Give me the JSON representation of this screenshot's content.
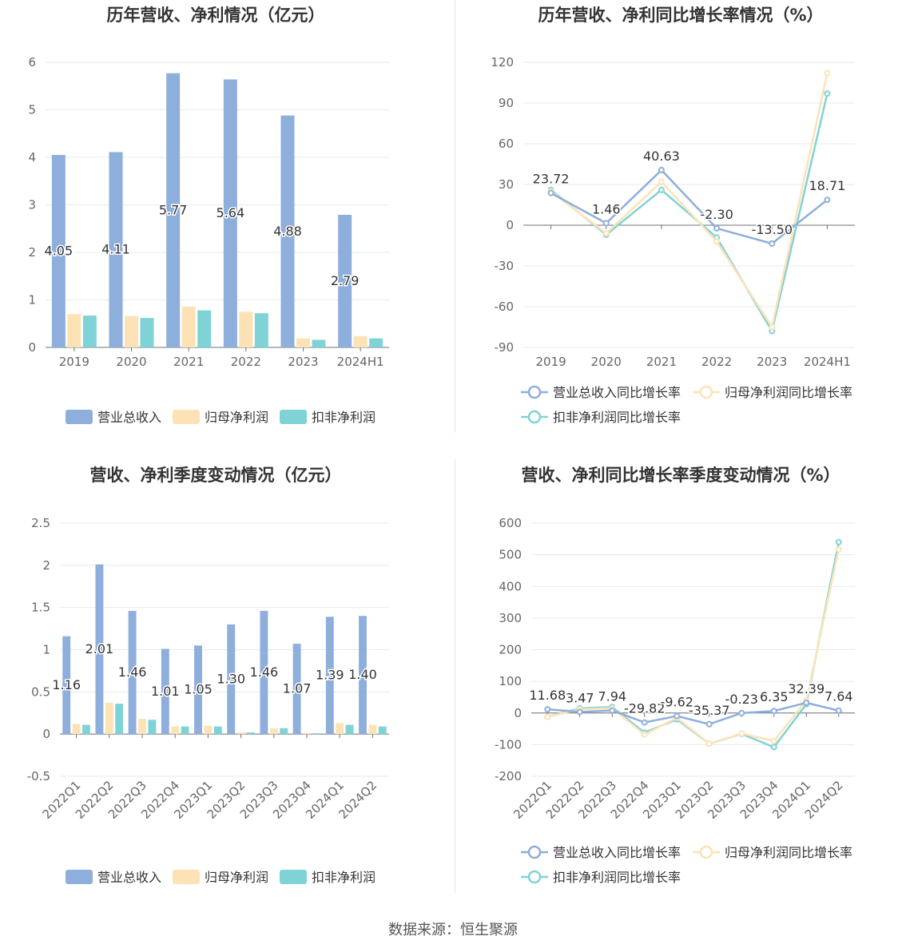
{
  "source": "数据来源：恒生聚源",
  "colors": {
    "revenue": "#8eaedc",
    "parent_profit": "#fde2b5",
    "deducted_profit": "#7fd3d6",
    "grid": "#e6e9ef",
    "axis": "#666666"
  },
  "chart_data": [
    {
      "id": "annual-amount",
      "type": "bar",
      "title": "历年营收、净利情况（亿元）",
      "categories": [
        "2019",
        "2020",
        "2021",
        "2022",
        "2023",
        "2024H1"
      ],
      "yticks": [
        "0",
        "1",
        "2",
        "3",
        "4",
        "5",
        "6"
      ],
      "ylim": [
        0,
        6
      ],
      "series": [
        {
          "name": "营业总收入",
          "values": [
            4.05,
            4.11,
            5.77,
            5.64,
            4.88,
            2.79
          ],
          "labels": [
            "4.05",
            "4.11",
            "5.77",
            "5.64",
            "4.88",
            "2.79"
          ]
        },
        {
          "name": "归母净利润",
          "values": [
            0.7,
            0.66,
            0.86,
            0.75,
            0.19,
            0.24
          ]
        },
        {
          "name": "扣非净利润",
          "values": [
            0.67,
            0.62,
            0.78,
            0.72,
            0.16,
            0.19
          ]
        }
      ],
      "grid": true,
      "legend": "bottom"
    },
    {
      "id": "annual-growth",
      "type": "line",
      "title": "历年营收、净利同比增长率情况（%）",
      "categories": [
        "2019",
        "2020",
        "2021",
        "2022",
        "2023",
        "2024H1"
      ],
      "yticks": [
        "-90",
        "-60",
        "-30",
        "0",
        "30",
        "60",
        "90",
        "120"
      ],
      "ylim": [
        -90,
        120
      ],
      "series": [
        {
          "name": "营业总收入同比增长率",
          "values": [
            23.72,
            1.46,
            40.63,
            -2.3,
            -13.5,
            18.71
          ],
          "labels": [
            "23.72",
            "1.46",
            "40.63",
            "-2.30",
            "-13.50",
            "18.71"
          ]
        },
        {
          "name": "归母净利润同比增长率",
          "values": [
            25,
            -6,
            32,
            -12,
            -75,
            112
          ]
        },
        {
          "name": "扣非净利润同比增长率",
          "values": [
            26,
            -7,
            26,
            -9,
            -78,
            97
          ]
        }
      ],
      "grid": true,
      "legend": "bottom"
    },
    {
      "id": "quarterly-amount",
      "type": "bar",
      "title": "营收、净利季度变动情况（亿元）",
      "categories": [
        "2022Q1",
        "2022Q2",
        "2022Q3",
        "2022Q4",
        "2023Q1",
        "2023Q2",
        "2023Q3",
        "2023Q4",
        "2024Q1",
        "2024Q2"
      ],
      "yticks": [
        "-0.5",
        "0",
        "0.5",
        "1",
        "1.5",
        "2",
        "2.5"
      ],
      "ylim": [
        -0.5,
        2.5
      ],
      "series": [
        {
          "name": "营业总收入",
          "values": [
            1.16,
            2.01,
            1.46,
            1.01,
            1.05,
            1.3,
            1.46,
            1.07,
            1.39,
            1.4
          ],
          "labels": [
            "1.16",
            "2.01",
            "1.46",
            "1.01",
            "1.05",
            "1.30",
            "1.46",
            "1.07",
            "1.39",
            "1.40"
          ]
        },
        {
          "name": "归母净利润",
          "values": [
            0.12,
            0.37,
            0.18,
            0.09,
            0.1,
            0.02,
            0.07,
            0.01,
            0.13,
            0.11
          ]
        },
        {
          "name": "扣非净利润",
          "values": [
            0.11,
            0.36,
            0.17,
            0.09,
            0.09,
            0.02,
            0.07,
            0.01,
            0.11,
            0.09
          ]
        }
      ],
      "grid": true,
      "legend": "bottom"
    },
    {
      "id": "quarterly-growth",
      "type": "line",
      "title": "营收、净利同比增长率季度变动情况（%）",
      "categories": [
        "2022Q1",
        "2022Q2",
        "2022Q3",
        "2022Q4",
        "2023Q1",
        "2023Q2",
        "2023Q3",
        "2023Q4",
        "2024Q1",
        "2024Q2"
      ],
      "yticks": [
        "-200",
        "-100",
        "0",
        "100",
        "200",
        "300",
        "400",
        "500",
        "600"
      ],
      "ylim": [
        -200,
        600
      ],
      "series": [
        {
          "name": "营业总收入同比增长率",
          "values": [
            11.68,
            3.47,
            7.94,
            -29.82,
            -9.62,
            -35.37,
            -0.23,
            6.35,
            32.39,
            7.64
          ],
          "labels": [
            "11.68",
            "3.47",
            "7.94",
            "-29.82",
            "-9.62",
            "-35.37",
            "-0.23",
            "6.35",
            "32.39",
            "7.64"
          ]
        },
        {
          "name": "归母净利润同比增长率",
          "values": [
            -12,
            12,
            15,
            -68,
            -15,
            -97,
            -65,
            -88,
            40,
            517
          ]
        },
        {
          "name": "扣非净利润同比增长率",
          "values": [
            -12,
            15,
            19,
            -62,
            -20,
            -97,
            -66,
            -108,
            28,
            540
          ]
        }
      ],
      "grid": true,
      "legend": "bottom"
    }
  ]
}
